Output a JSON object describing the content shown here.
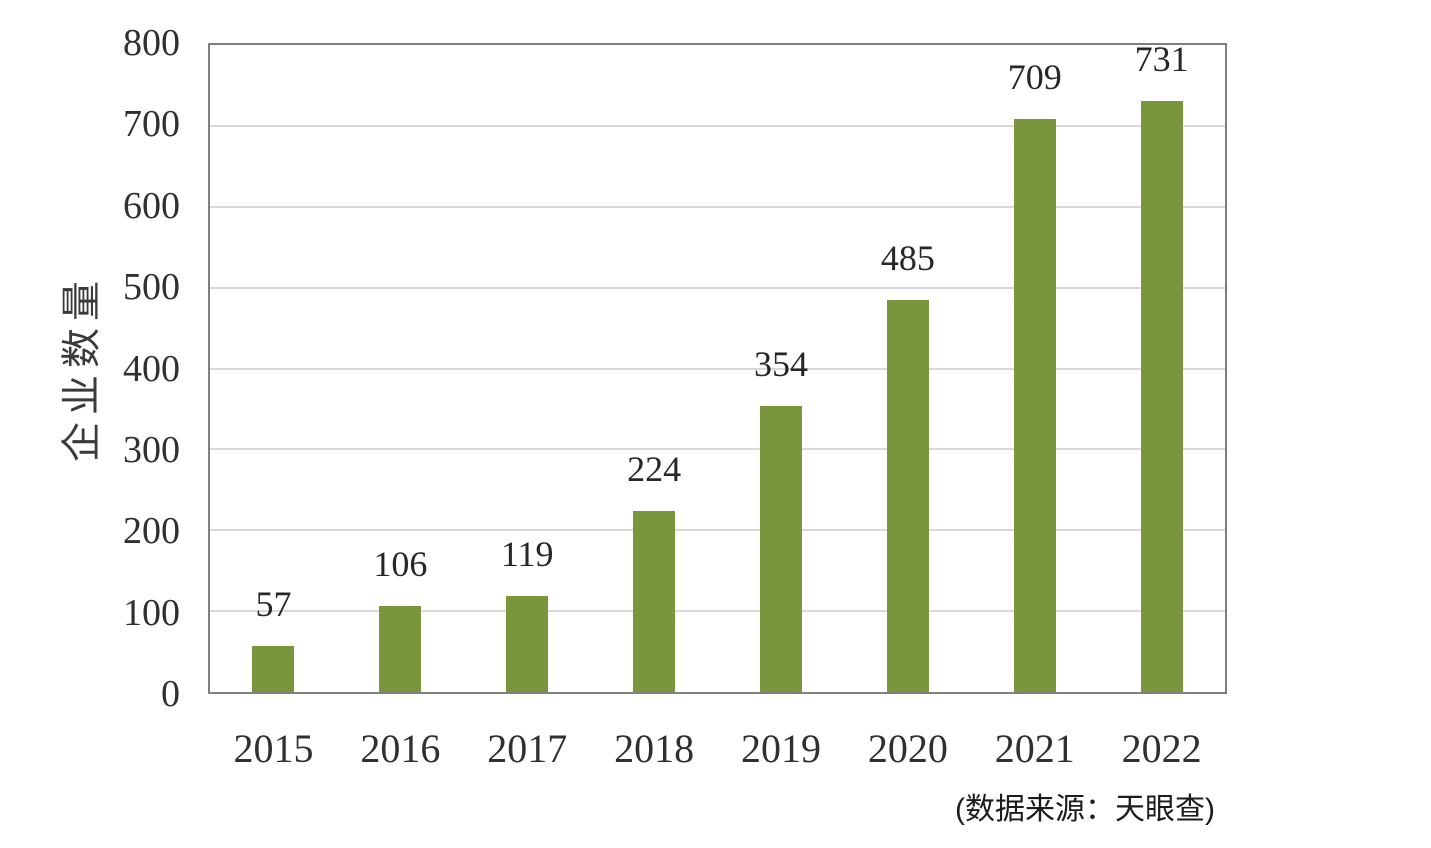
{
  "chart_data": {
    "type": "bar",
    "categories": [
      "2015",
      "2016",
      "2017",
      "2018",
      "2019",
      "2020",
      "2021",
      "2022"
    ],
    "values": [
      57,
      106,
      119,
      224,
      354,
      485,
      709,
      731
    ],
    "title": "",
    "xlabel": "",
    "ylabel": "企业数量",
    "ylim": [
      0,
      800
    ],
    "yticks": [
      0,
      100,
      200,
      300,
      400,
      500,
      600,
      700,
      800
    ],
    "grid": true,
    "legend_position": "none",
    "bar_color": "#79963d",
    "gridline_color": "#d9d9d9",
    "axis_border_color": "#7f7f7f",
    "data_labels": [
      57,
      106,
      119,
      224,
      354,
      485,
      709,
      731
    ]
  },
  "source_note": "(数据来源：天眼查)"
}
